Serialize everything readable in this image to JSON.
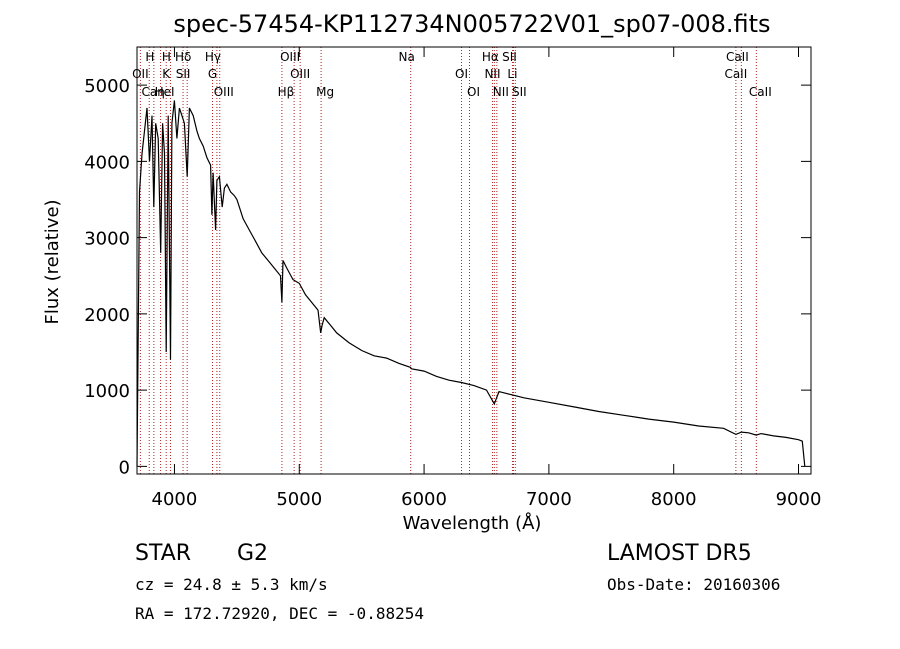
{
  "chart_data": {
    "type": "line",
    "title": "spec-57454-KP112734N005722V01_sp07-008.fits",
    "xlabel": "Wavelength (Å)",
    "ylabel": "Flux (relative)",
    "xlim": [
      3700,
      9100
    ],
    "ylim": [
      -100,
      5500
    ],
    "xticks": [
      4000,
      5000,
      6000,
      7000,
      8000,
      9000
    ],
    "yticks": [
      0,
      1000,
      2000,
      3000,
      4000,
      5000
    ],
    "grid": false,
    "colors": {
      "spectrum": "#000000",
      "lines": "#b22222"
    },
    "series": [
      {
        "x": [
          3700,
          3720,
          3740,
          3760,
          3780,
          3800,
          3820,
          3835,
          3850,
          3870,
          3890,
          3905,
          3920,
          3934,
          3950,
          3968,
          3980,
          4000,
          4020,
          4040,
          4060,
          4080,
          4102,
          4120,
          4150,
          4180,
          4200,
          4230,
          4260,
          4290,
          4300,
          4310,
          4330,
          4340,
          4360,
          4383,
          4400,
          4420,
          4450,
          4480,
          4500,
          4550,
          4600,
          4650,
          4700,
          4750,
          4800,
          4850,
          4861,
          4870,
          4900,
          4950,
          5000,
          5050,
          5100,
          5150,
          5172,
          5183,
          5200,
          5250,
          5300,
          5400,
          5500,
          5600,
          5700,
          5800,
          5890,
          5900,
          6000,
          6100,
          6200,
          6300,
          6400,
          6500,
          6563,
          6600,
          6700,
          6800,
          7000,
          7200,
          7400,
          7600,
          7800,
          8000,
          8200,
          8400,
          8498,
          8542,
          8600,
          8662,
          8700,
          8800,
          8900,
          9000,
          9030,
          9050
        ],
        "y": [
          0,
          3600,
          4100,
          4400,
          4700,
          4000,
          4600,
          3400,
          4500,
          4300,
          2800,
          4500,
          4100,
          1500,
          4600,
          1400,
          4500,
          4800,
          4300,
          4700,
          4600,
          4500,
          3800,
          4700,
          4600,
          4400,
          4300,
          4200,
          4050,
          3950,
          3300,
          3850,
          3100,
          3750,
          3800,
          3400,
          3650,
          3700,
          3600,
          3550,
          3500,
          3250,
          3100,
          2950,
          2800,
          2700,
          2600,
          2500,
          2150,
          2700,
          2600,
          2450,
          2400,
          2250,
          2150,
          2050,
          1750,
          1850,
          1950,
          1850,
          1750,
          1620,
          1520,
          1450,
          1420,
          1350,
          1300,
          1280,
          1250,
          1180,
          1130,
          1100,
          1060,
          1000,
          820,
          980,
          940,
          900,
          840,
          780,
          720,
          670,
          620,
          580,
          530,
          500,
          420,
          450,
          440,
          410,
          430,
          400,
          380,
          350,
          330,
          0
        ]
      }
    ],
    "annotations": [
      {
        "label": "H",
        "wl": 3835
      },
      {
        "label": "OII",
        "wl": 3727
      },
      {
        "label": "Caη",
        "wl": 3798
      },
      {
        "label": "Hδ",
        "wl": 4102
      },
      {
        "label": "K",
        "wl": 3934
      },
      {
        "label": "HeI",
        "wl": 3889
      },
      {
        "label": "H",
        "wl": 3968
      },
      {
        "label": "SII",
        "wl": 4069
      },
      {
        "label": "OIII",
        "wl": 4363
      },
      {
        "label": "Hγ",
        "wl": 4340
      },
      {
        "label": "G",
        "wl": 4305
      },
      {
        "label": "Hβ",
        "wl": 4861
      },
      {
        "label": "OIII",
        "wl": 4959
      },
      {
        "label": "OIII",
        "wl": 5007
      },
      {
        "label": "Mg",
        "wl": 5175
      },
      {
        "label": "Na",
        "wl": 5893
      },
      {
        "label": "OI",
        "wl": 6300
      },
      {
        "label": "OI",
        "wl": 6364
      },
      {
        "label": "Hα",
        "wl": 6563
      },
      {
        "label": "NII",
        "wl": 6548
      },
      {
        "label": "NII",
        "wl": 6583
      },
      {
        "label": "SII",
        "wl": 6716
      },
      {
        "label": "Li",
        "wl": 6708
      },
      {
        "label": "SII",
        "wl": 6731
      },
      {
        "label": "CaII",
        "wl": 8542
      },
      {
        "label": "CaII",
        "wl": 8498
      },
      {
        "label": "CaII",
        "wl": 8662
      }
    ]
  },
  "info": {
    "obj_class": "STAR",
    "subclass": "G2",
    "survey": "LAMOST DR5",
    "redshift": "cz = 24.8 ± 5.3 km/s",
    "obs_date": "Obs-Date: 20160306",
    "coords": "RA = 172.72920, DEC =  -0.88254"
  }
}
